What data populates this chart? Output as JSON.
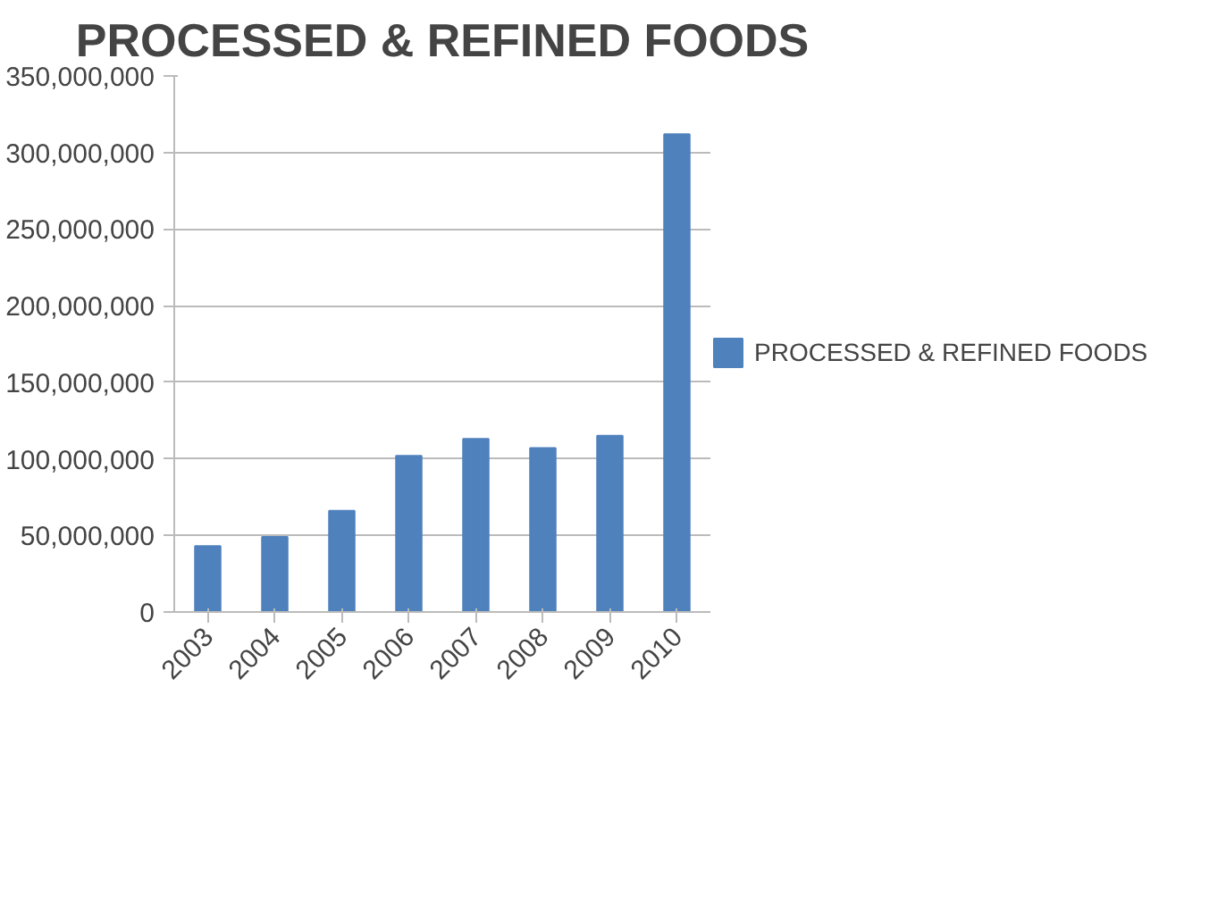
{
  "chart_data": {
    "type": "bar",
    "title": "PROCESSED & REFINED FOODS",
    "categories": [
      "2003",
      "2004",
      "2005",
      "2006",
      "2007",
      "2008",
      "2009",
      "2010"
    ],
    "series": [
      {
        "name": "PROCESSED & REFINED FOODS",
        "color": "#4f81bd",
        "values": [
          43000000,
          49000000,
          66000000,
          102000000,
          113000000,
          107000000,
          115000000,
          312000000
        ]
      }
    ],
    "ylim": [
      0,
      350000000
    ],
    "yticks": [
      {
        "value": 0,
        "label": "0"
      },
      {
        "value": 50000000,
        "label": "50,000,000"
      },
      {
        "value": 100000000,
        "label": "100,000,000"
      },
      {
        "value": 150000000,
        "label": "150,000,000"
      },
      {
        "value": 200000000,
        "label": "200,000,000"
      },
      {
        "value": 250000000,
        "label": "250,000,000"
      },
      {
        "value": 300000000,
        "label": "300,000,000"
      },
      {
        "value": 350000000,
        "label": "350,000,000"
      }
    ],
    "grid": "y",
    "legend": "right"
  }
}
